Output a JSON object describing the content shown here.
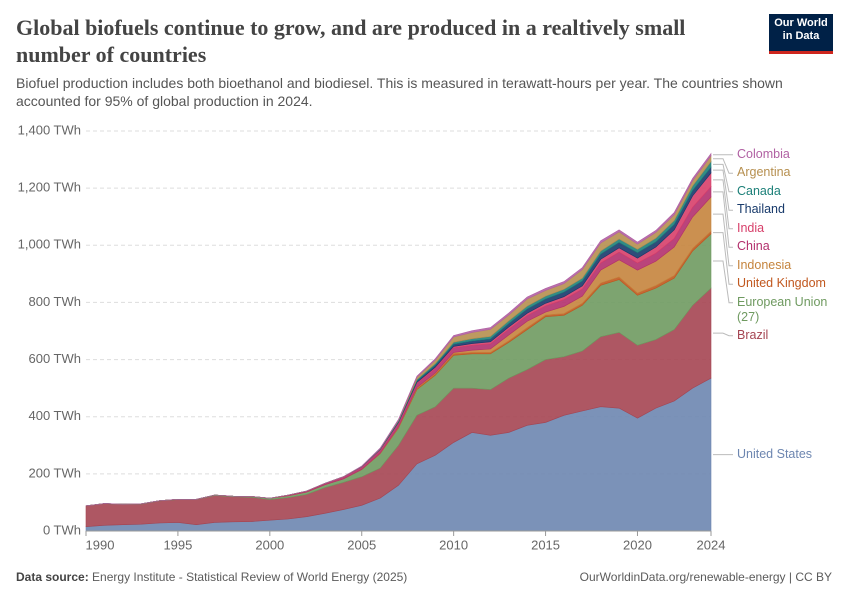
{
  "chart_data": {
    "type": "area",
    "stacked": true,
    "title": "Global biofuels continue to grow, and are produced in a realtively small number of countries",
    "subtitle": "Biofuel production includes both bioethanol and biodiesel. This is measured in terawatt-hours per year. The countries shown accounted for 95% of global production in 2024.",
    "logo": "Our World in Data",
    "source_label": "Data source:",
    "source": "Energy Institute - Statistical Review of World Energy (2025)",
    "credit": "OurWorldinData.org/renewable-energy | CC BY",
    "x": [
      1990,
      1991,
      1992,
      1993,
      1994,
      1995,
      1996,
      1997,
      1998,
      1999,
      2000,
      2001,
      2002,
      2003,
      2004,
      2005,
      2006,
      2007,
      2008,
      2009,
      2010,
      2011,
      2012,
      2013,
      2014,
      2015,
      2016,
      2017,
      2018,
      2019,
      2020,
      2021,
      2022,
      2023,
      2024
    ],
    "xlim": [
      1990,
      2024
    ],
    "xticks": [
      1990,
      1995,
      2000,
      2005,
      2010,
      2015,
      2020,
      2024
    ],
    "ylim": [
      0,
      1400
    ],
    "yticks": [
      {
        "value": 0,
        "label": "0 TWh"
      },
      {
        "value": 200,
        "label": "200 TWh"
      },
      {
        "value": 400,
        "label": "400 TWh"
      },
      {
        "value": 600,
        "label": "600 TWh"
      },
      {
        "value": 800,
        "label": "800 TWh"
      },
      {
        "value": 1000,
        "label": "1,000 TWh"
      },
      {
        "value": 1200,
        "label": "1,200 TWh"
      },
      {
        "value": 1400,
        "label": "1,400 TWh"
      }
    ],
    "grid": true,
    "series": [
      {
        "name": "United States",
        "color": "#6d86b0",
        "values": [
          15,
          20,
          22,
          24,
          28,
          30,
          22,
          30,
          32,
          33,
          38,
          42,
          50,
          62,
          75,
          90,
          115,
          160,
          235,
          265,
          310,
          345,
          335,
          345,
          370,
          380,
          405,
          420,
          435,
          430,
          395,
          430,
          455,
          500,
          535
        ]
      },
      {
        "name": "Brazil",
        "color": "#a54552",
        "values": [
          73,
          76,
          71,
          70,
          77,
          80,
          88,
          94,
          88,
          85,
          72,
          75,
          78,
          90,
          95,
          100,
          105,
          140,
          170,
          170,
          190,
          155,
          160,
          190,
          195,
          220,
          205,
          210,
          245,
          265,
          255,
          240,
          250,
          290,
          315
        ]
      },
      {
        "name": "European Union (27)",
        "color": "#6f9a60",
        "values": [
          0,
          0,
          1,
          1,
          1,
          1,
          1,
          2,
          2,
          3,
          5,
          6,
          8,
          10,
          12,
          25,
          50,
          60,
          90,
          110,
          115,
          120,
          125,
          125,
          140,
          150,
          145,
          160,
          180,
          185,
          175,
          180,
          180,
          190,
          190
        ]
      },
      {
        "name": "United Kingdom",
        "color": "#c1581f",
        "values": [
          0,
          0,
          0,
          0,
          0,
          0,
          0,
          0,
          0,
          0,
          0,
          0,
          0,
          0,
          0,
          0.5,
          1,
          2,
          4,
          5,
          6,
          5,
          5,
          6,
          7,
          6,
          6,
          7,
          8,
          9,
          8,
          9,
          9,
          9,
          9
        ]
      },
      {
        "name": "Indonesia",
        "color": "#c5843d",
        "values": [
          0,
          0,
          0,
          0,
          0,
          0,
          0,
          0,
          0,
          0,
          0,
          0,
          0,
          0,
          0,
          0,
          1,
          2,
          3,
          3,
          4,
          8,
          12,
          20,
          22,
          10,
          25,
          25,
          45,
          60,
          80,
          85,
          100,
          110,
          120
        ]
      },
      {
        "name": "China",
        "color": "#b3306d",
        "values": [
          0,
          0,
          0,
          0,
          0,
          0,
          0,
          0,
          0,
          0,
          0,
          2,
          3,
          4,
          6,
          8,
          10,
          12,
          14,
          15,
          16,
          17,
          18,
          20,
          20,
          22,
          24,
          25,
          25,
          27,
          25,
          28,
          30,
          34,
          36
        ]
      },
      {
        "name": "India",
        "color": "#d73f6a",
        "values": [
          0,
          0,
          0,
          0,
          0,
          0,
          0,
          0,
          0,
          0,
          0,
          1,
          1,
          1,
          2,
          2,
          3,
          4,
          4,
          5,
          5,
          6,
          7,
          8,
          8,
          9,
          10,
          11,
          13,
          15,
          17,
          22,
          30,
          40,
          48
        ]
      },
      {
        "name": "Thailand",
        "color": "#183a6b",
        "values": [
          0,
          0,
          0,
          0,
          0,
          0,
          0,
          0,
          0,
          0,
          0,
          0,
          0,
          0,
          0,
          0,
          1,
          2,
          5,
          7,
          8,
          9,
          10,
          12,
          15,
          15,
          16,
          17,
          18,
          19,
          19,
          18,
          19,
          19,
          20
        ]
      },
      {
        "name": "Canada",
        "color": "#1d8079",
        "values": [
          0,
          0,
          0,
          0,
          0,
          0,
          0,
          0,
          0,
          0,
          0,
          0,
          0,
          0,
          0,
          1,
          2,
          4,
          5,
          6,
          7,
          8,
          9,
          10,
          10,
          10,
          10,
          10,
          11,
          12,
          12,
          13,
          14,
          16,
          20
        ]
      },
      {
        "name": "Argentina",
        "color": "#b68f4f",
        "values": [
          0,
          0,
          0,
          0,
          0,
          0,
          0,
          0,
          0,
          0,
          0,
          0,
          0,
          0,
          0,
          0,
          0,
          2,
          8,
          12,
          18,
          22,
          25,
          20,
          25,
          20,
          20,
          30,
          28,
          25,
          18,
          20,
          20,
          18,
          20
        ]
      },
      {
        "name": "Colombia",
        "color": "#b161a3",
        "values": [
          0,
          0,
          0,
          0,
          0,
          0,
          0,
          0,
          0,
          0,
          0,
          0,
          0,
          0,
          0,
          1,
          2,
          3,
          4,
          5,
          5,
          6,
          6,
          7,
          7,
          7,
          7,
          7,
          8,
          7,
          7,
          7,
          8,
          8,
          8
        ]
      }
    ]
  }
}
